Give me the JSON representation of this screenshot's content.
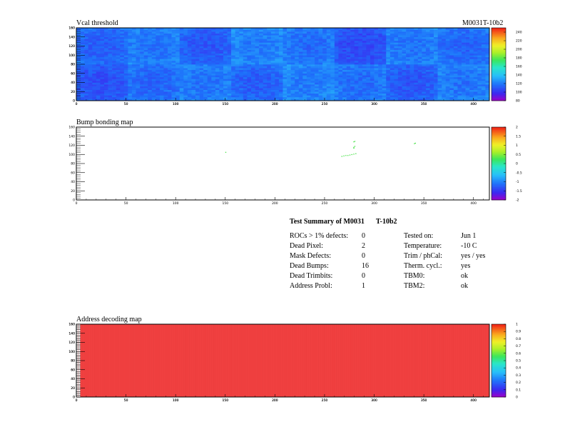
{
  "chart_data": [
    {
      "type": "heatmap",
      "title": "Vcal threshold",
      "module_label": "M0031T-10b2",
      "xlim": [
        0,
        416
      ],
      "ylim": [
        0,
        160
      ],
      "x_ticks": [
        "0",
        "50",
        "100",
        "150",
        "200",
        "250",
        "300",
        "350",
        "400"
      ],
      "y_ticks": [
        "0",
        "20",
        "40",
        "60",
        "80",
        "100",
        "120",
        "140",
        "160"
      ],
      "colorbar": {
        "min": 80,
        "max": 250,
        "ticks": [
          "80",
          "100",
          "120",
          "140",
          "160",
          "180",
          "200",
          "220",
          "240"
        ]
      },
      "tiles": {
        "top_row": [
          112,
          118,
          110,
          120,
          116,
          106,
          118,
          114
        ],
        "bottom_row": [
          108,
          114,
          118,
          112,
          120,
          116,
          110,
          118
        ]
      }
    },
    {
      "type": "heatmap",
      "title": "Bump bonding map",
      "xlim": [
        0,
        416
      ],
      "ylim": [
        0,
        160
      ],
      "x_ticks": [
        "0",
        "50",
        "100",
        "150",
        "200",
        "250",
        "300",
        "350",
        "400"
      ],
      "y_ticks": [
        "0",
        "20",
        "40",
        "60",
        "80",
        "100",
        "120",
        "140",
        "160"
      ],
      "colorbar": {
        "min": -2,
        "max": 2,
        "ticks": [
          "-2",
          "-1.5",
          "-1",
          "-0.5",
          "0",
          "0.5",
          "1",
          "1.5",
          "2"
        ]
      },
      "dead_pixels": [
        [
          150,
          104
        ],
        [
          267,
          95
        ],
        [
          269,
          96
        ],
        [
          271,
          97
        ],
        [
          273,
          97
        ],
        [
          275,
          98
        ],
        [
          277,
          99
        ],
        [
          279,
          100
        ],
        [
          281,
          101
        ],
        [
          279,
          113
        ],
        [
          279,
          115
        ],
        [
          280,
          117
        ],
        [
          340,
          123
        ],
        [
          341,
          124
        ],
        [
          279,
          127
        ],
        [
          280,
          128
        ]
      ]
    },
    {
      "type": "heatmap",
      "title": "Address decoding map",
      "xlim": [
        0,
        416
      ],
      "ylim": [
        0,
        160
      ],
      "x_ticks": [
        "0",
        "50",
        "100",
        "150",
        "200",
        "250",
        "300",
        "350",
        "400"
      ],
      "y_ticks": [
        "0",
        "20",
        "40",
        "60",
        "80",
        "100",
        "120",
        "140",
        "160"
      ],
      "colorbar": {
        "min": 0,
        "max": 1,
        "ticks": [
          "0",
          "0.1",
          "0.2",
          "0.3",
          "0.4",
          "0.5",
          "0.6",
          "0.7",
          "0.8",
          "0.9",
          "1"
        ]
      },
      "uniform_value": 1
    }
  ],
  "summary": {
    "title_a": "Test Summary of M0031",
    "title_b": "T-10b2",
    "left": [
      {
        "label": "ROCs > 1% defects:",
        "value": "0"
      },
      {
        "label": "Dead Pixel:",
        "value": "2"
      },
      {
        "label": "Mask Defects:",
        "value": "0"
      },
      {
        "label": "Dead Bumps:",
        "value": "16"
      },
      {
        "label": "Dead Trimbits:",
        "value": "0"
      },
      {
        "label": "Address Probl:",
        "value": "1"
      }
    ],
    "right": [
      {
        "label": "Tested on:",
        "value": "Jun 1"
      },
      {
        "label": "Temperature:",
        "value": "-10 C"
      },
      {
        "label": "Trim / phCal:",
        "value": "yes / yes"
      },
      {
        "label": "Therm. cycl.:",
        "value": "yes"
      },
      {
        "label": "TBM0:",
        "value": "ok"
      },
      {
        "label": "TBM2:",
        "value": "ok"
      }
    ]
  },
  "colors": {
    "frame": "#000000",
    "address_fill": "#f04040",
    "dead_bump": "#40e040"
  }
}
